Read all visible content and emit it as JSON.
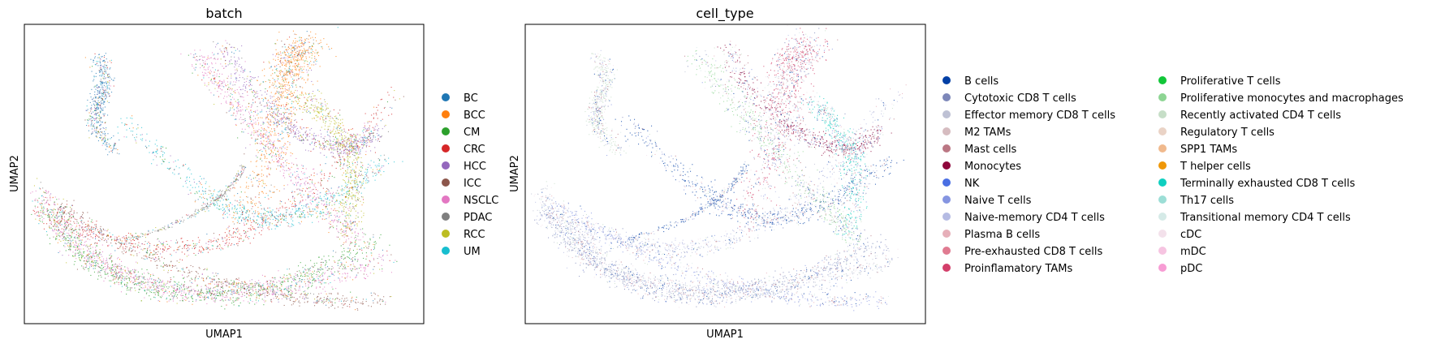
{
  "chart_data": [
    {
      "type": "scatter",
      "title": "batch",
      "xlabel": "UMAP1",
      "ylabel": "UMAP2",
      "grid": false,
      "ticks": "none",
      "legend_placement": "right",
      "legend": [
        {
          "label": "BC",
          "color": "#1f77b4"
        },
        {
          "label": "BCC",
          "color": "#ff7f0e"
        },
        {
          "label": "CM",
          "color": "#2ca02c"
        },
        {
          "label": "CRC",
          "color": "#d62728"
        },
        {
          "label": "HCC",
          "color": "#9467bd"
        },
        {
          "label": "ICC",
          "color": "#8c564b"
        },
        {
          "label": "NSCLC",
          "color": "#e377c2"
        },
        {
          "label": "PDAC",
          "color": "#7f7f7f"
        },
        {
          "label": "RCC",
          "color": "#bcbd22"
        },
        {
          "label": "UM",
          "color": "#17becf"
        }
      ]
    },
    {
      "type": "scatter",
      "title": "cell_type",
      "xlabel": "UMAP1",
      "ylabel": "UMAP2",
      "grid": false,
      "ticks": "none",
      "legend_placement": "right",
      "legend_columns": 2,
      "legend": [
        {
          "label": "B cells",
          "color": "#023fa5"
        },
        {
          "label": "Cytotoxic CD8 T cells",
          "color": "#7d87b9"
        },
        {
          "label": "Effector memory CD8 T cells",
          "color": "#bec1d4"
        },
        {
          "label": "M2 TAMs",
          "color": "#d6bcc0"
        },
        {
          "label": "Mast cells",
          "color": "#bb7784"
        },
        {
          "label": "Monocytes",
          "color": "#8e063b"
        },
        {
          "label": "NK",
          "color": "#4a6fe3"
        },
        {
          "label": "Naive T cells",
          "color": "#8595e1"
        },
        {
          "label": "Naive-memory CD4 T cells",
          "color": "#b5bbe3"
        },
        {
          "label": "Plasma B cells",
          "color": "#e6afb9"
        },
        {
          "label": "Pre-exhausted CD8 T cells",
          "color": "#e07b91"
        },
        {
          "label": "Proinflamatory TAMs",
          "color": "#d33f6a"
        },
        {
          "label": "Proliferative T cells",
          "color": "#11c638"
        },
        {
          "label": "Proliferative monocytes and macrophages",
          "color": "#8dd593"
        },
        {
          "label": "Recently activated CD4 T cells",
          "color": "#c6dec7"
        },
        {
          "label": "Regulatory T cells",
          "color": "#ead3c6"
        },
        {
          "label": "SPP1 TAMs",
          "color": "#f0b98d"
        },
        {
          "label": "T helper cells",
          "color": "#ef9708"
        },
        {
          "label": "Terminally exhausted CD8 T cells",
          "color": "#0fcfc0"
        },
        {
          "label": "Th17 cells",
          "color": "#9cded6"
        },
        {
          "label": "Transitional memory CD4 T cells",
          "color": "#d5eae7"
        },
        {
          "label": "cDC",
          "color": "#f3e1eb"
        },
        {
          "label": "mDC",
          "color": "#f6c4e1"
        },
        {
          "label": "pDC",
          "color": "#f79cd4"
        }
      ]
    }
  ]
}
